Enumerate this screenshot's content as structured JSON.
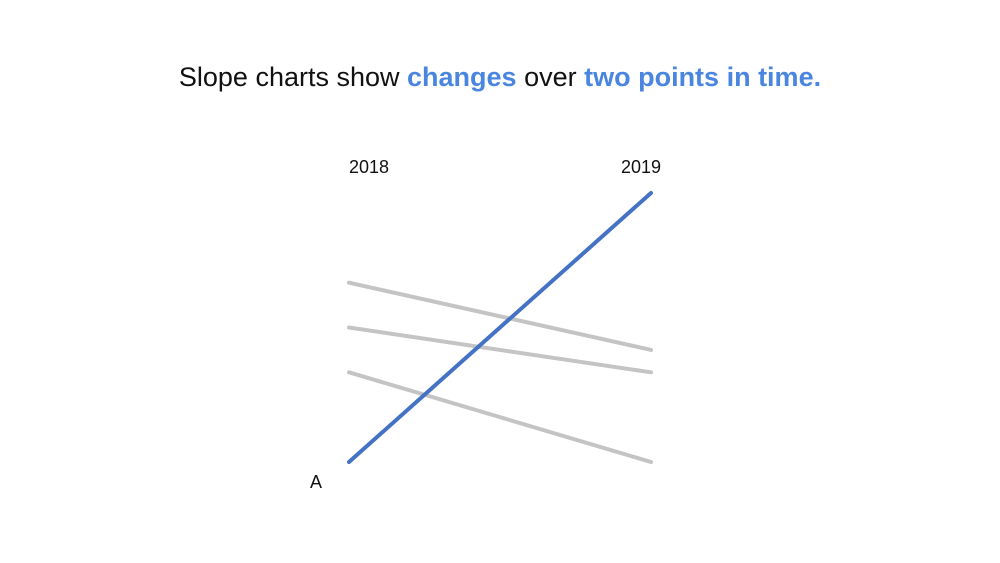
{
  "title": {
    "part1": "Slope charts show ",
    "highlight1": "changes",
    "part2": " over ",
    "highlight2": "two points in time.",
    "highlight_color": "#4a86e0"
  },
  "chart_data": {
    "type": "line",
    "x": [
      "2018",
      "2019"
    ],
    "series": [
      {
        "name": "A",
        "values": [
          0,
          30
        ],
        "color": "#4472c4",
        "highlight": true
      },
      {
        "values": [
          20,
          12.5
        ],
        "color": "#c4c4c4"
      },
      {
        "values": [
          15,
          10
        ],
        "color": "#c4c4c4"
      },
      {
        "values": [
          10,
          0
        ],
        "color": "#c4c4c4"
      }
    ],
    "ylim": [
      0,
      30
    ],
    "grid": false,
    "legend": "none"
  }
}
